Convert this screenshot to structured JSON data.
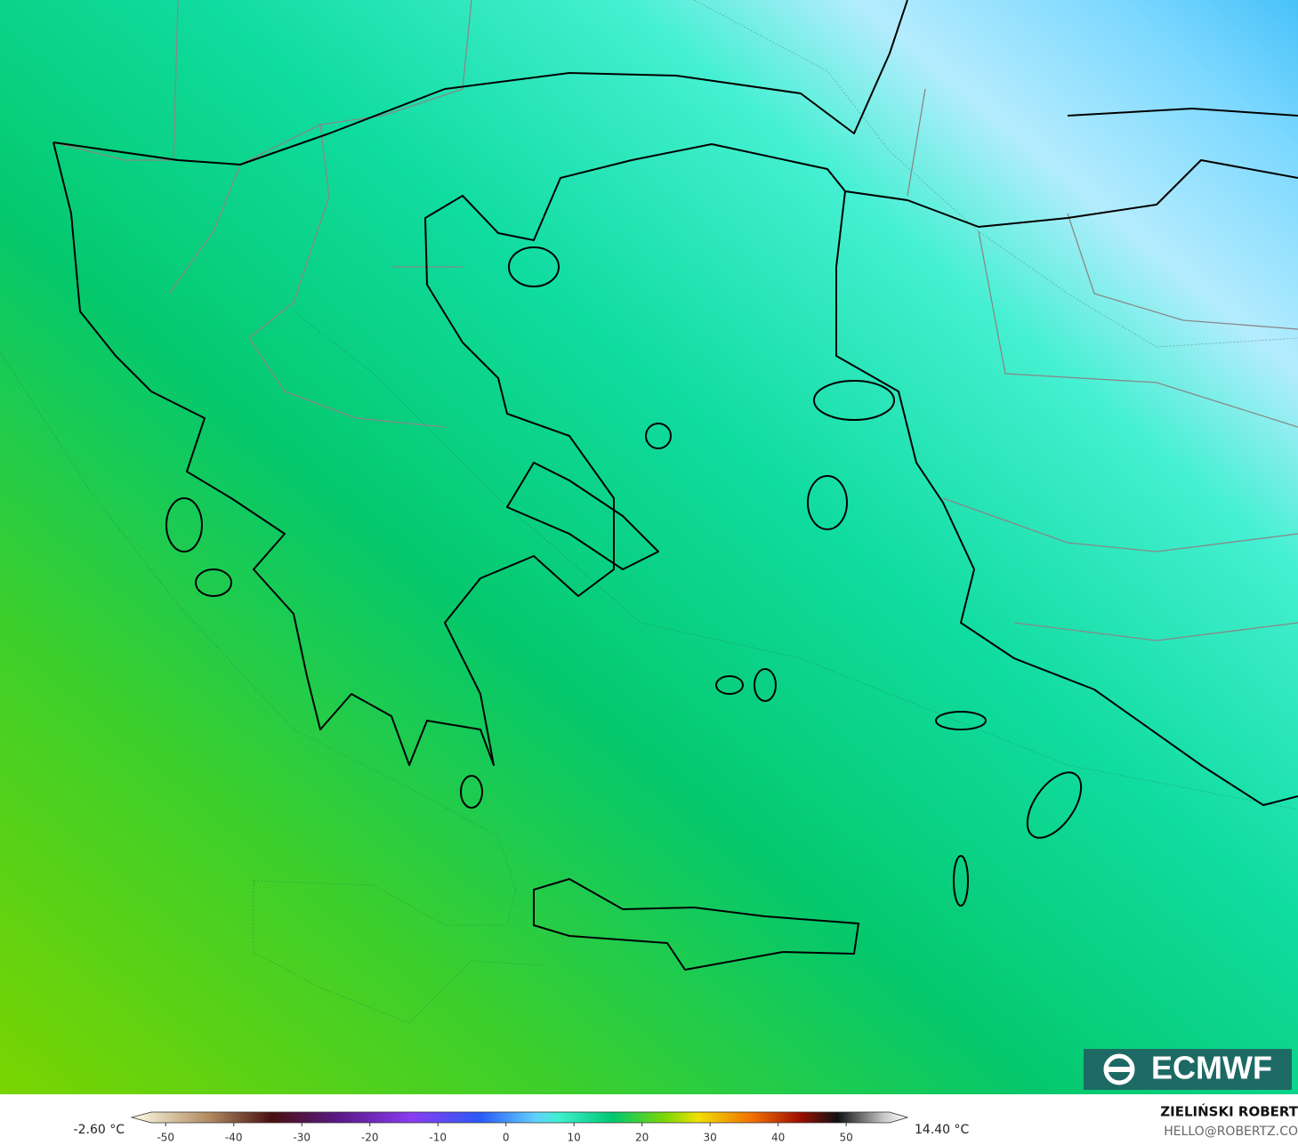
{
  "map": {
    "logo": "ECMWF",
    "author": "ZIELIŃSKI ROBERT",
    "contact": "HELLO@ROBERTZ.CO"
  },
  "colorbar": {
    "min_label": "-2.60 °C",
    "max_label": "14.40 °C",
    "ticks": [
      -50,
      -40,
      -30,
      -20,
      -10,
      0,
      10,
      20,
      30,
      40,
      50
    ],
    "xlim": [
      -55,
      59
    ]
  }
}
